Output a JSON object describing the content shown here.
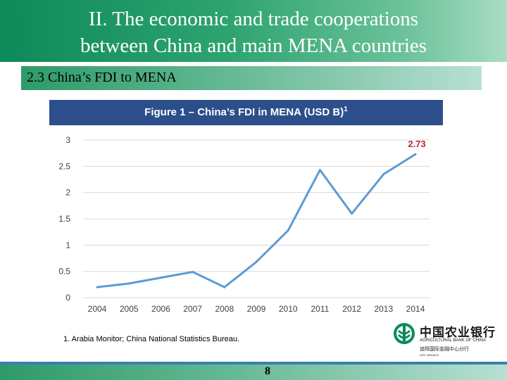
{
  "slide": {
    "title_line1": "II. The economic and trade cooperations",
    "title_line2": "between China and main MENA countries",
    "section_title": "2.3 China’s FDI to MENA",
    "footnote": "1. Arabia Monitor; China National Statistics Bureau.",
    "page_number": "8"
  },
  "logo": {
    "name_cn": "中国农业银行",
    "name_en": "AGRICULTURAL BANK OF CHINA",
    "branch_cn": "迪拜国际金融中心分行",
    "branch_en": "DIFC BRANCH"
  },
  "colors": {
    "title_green": "#0d8a5a",
    "figure_header_blue": "#2c4f8b",
    "line_blue": "#5b9bd5",
    "label_red": "#c0282d"
  },
  "chart_data": {
    "type": "line",
    "title": "Figure 1 – China’s FDI in MENA (USD B)",
    "title_superscript": "1",
    "x": [
      "2004",
      "2005",
      "2006",
      "2007",
      "2008",
      "2009",
      "2010",
      "2011",
      "2012",
      "2013",
      "2014"
    ],
    "series": [
      {
        "values": [
          0.2,
          0.27,
          0.38,
          0.49,
          0.2,
          0.68,
          1.28,
          2.43,
          1.6,
          2.35,
          2.73
        ]
      }
    ],
    "y_ticks": [
      "0",
      "0.5",
      "1",
      "1.5",
      "2",
      "2.5",
      "3"
    ],
    "ylim": [
      0,
      3
    ],
    "annotation": {
      "x": "2014",
      "text": "2.73"
    },
    "grid": true,
    "legend": "none"
  }
}
